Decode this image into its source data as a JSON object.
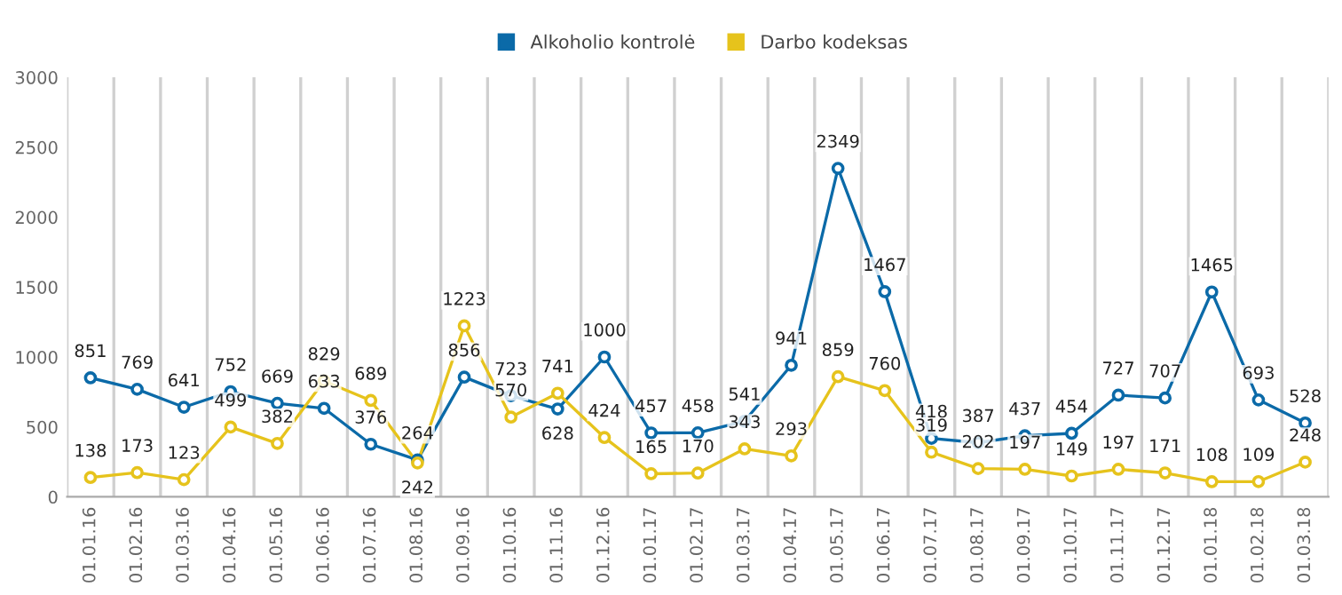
{
  "chart_data": {
    "type": "line",
    "categories": [
      "01.01.16",
      "01.02.16",
      "01.03.16",
      "01.04.16",
      "01.05.16",
      "01.06.16",
      "01.07.16",
      "01.08.16",
      "01.09.16",
      "01.10.16",
      "01.11.16",
      "01.12.16",
      "01.01.17",
      "01.02.17",
      "01.03.17",
      "01.04.17",
      "01.05.17",
      "01.06.17",
      "01.07.17",
      "01.08.17",
      "01.09.17",
      "01.10.17",
      "01.11.17",
      "01.12.17",
      "01.01.18",
      "01.02.18",
      "01.03.18"
    ],
    "series": [
      {
        "name": "Alkoholio kontrolė",
        "color": "#0b6aa8",
        "values": [
          851,
          769,
          641,
          752,
          669,
          633,
          376,
          264,
          856,
          723,
          628,
          1000,
          457,
          458,
          541,
          941,
          2349,
          1467,
          418,
          387,
          437,
          454,
          727,
          707,
          1465,
          693,
          528
        ]
      },
      {
        "name": "Darbo kodeksas",
        "color": "#e6c31c",
        "values": [
          138,
          173,
          123,
          499,
          382,
          829,
          689,
          242,
          1223,
          570,
          741,
          424,
          165,
          170,
          343,
          293,
          859,
          760,
          319,
          202,
          197,
          149,
          197,
          171,
          108,
          109,
          248
        ]
      }
    ],
    "ylim": [
      0,
      3000
    ],
    "yticks": [
      0,
      500,
      1000,
      1500,
      2000,
      2500,
      3000
    ],
    "grid": "x",
    "legend": "top",
    "marker": "circle",
    "line_style": "solid",
    "data_labels": true
  }
}
